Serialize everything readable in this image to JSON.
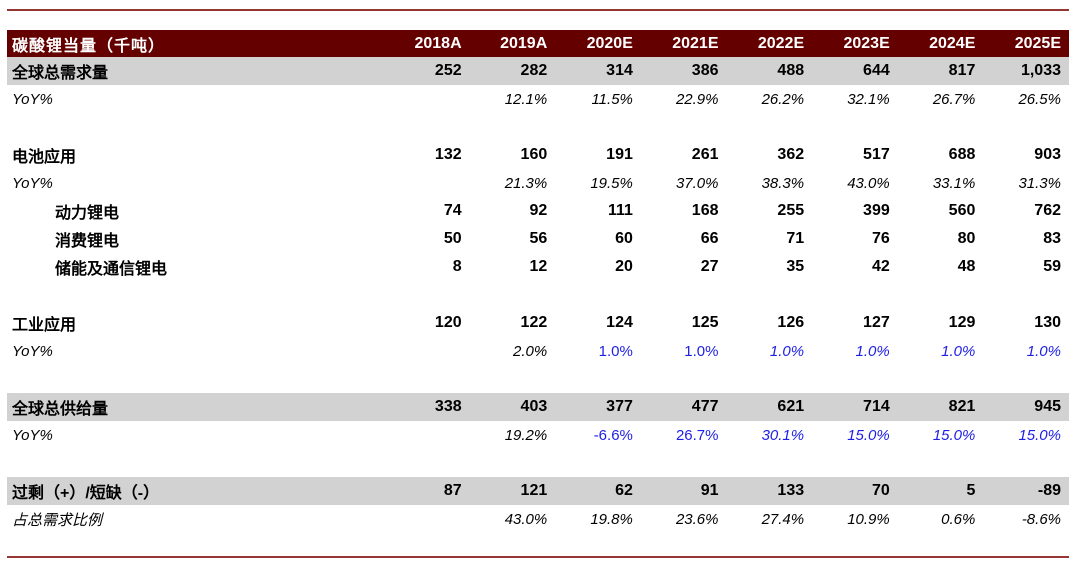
{
  "table": {
    "title_cell": "碳酸锂当量（千吨）",
    "columns": [
      "2018A",
      "2019A",
      "2020E",
      "2021E",
      "2022E",
      "2023E",
      "2024E",
      "2025E"
    ],
    "rows": [
      {
        "label": "全球总需求量",
        "type": "data",
        "highlight": true,
        "values": [
          "252",
          "282",
          "314",
          "386",
          "488",
          "644",
          "817",
          "1,033"
        ]
      },
      {
        "label": "YoY%",
        "type": "yoy",
        "values": [
          "",
          "12.1%",
          "11.5%",
          "22.9%",
          "26.2%",
          "32.1%",
          "26.7%",
          "26.5%"
        ],
        "styles": [
          "",
          "i",
          "i",
          "i",
          "i",
          "i",
          "i",
          "i"
        ]
      },
      {
        "type": "spacer"
      },
      {
        "label": "电池应用",
        "type": "data",
        "values": [
          "132",
          "160",
          "191",
          "261",
          "362",
          "517",
          "688",
          "903"
        ]
      },
      {
        "label": "YoY%",
        "type": "yoy",
        "values": [
          "",
          "21.3%",
          "19.5%",
          "37.0%",
          "38.3%",
          "43.0%",
          "33.1%",
          "31.3%"
        ],
        "styles": [
          "",
          "i",
          "i",
          "i",
          "i",
          "i",
          "i",
          "i"
        ]
      },
      {
        "label": "动力锂电",
        "type": "data",
        "indent": true,
        "values": [
          "74",
          "92",
          "111",
          "168",
          "255",
          "399",
          "560",
          "762"
        ]
      },
      {
        "label": "消费锂电",
        "type": "data",
        "indent": true,
        "values": [
          "50",
          "56",
          "60",
          "66",
          "71",
          "76",
          "80",
          "83"
        ]
      },
      {
        "label": "储能及通信锂电",
        "type": "data",
        "indent": true,
        "values": [
          "8",
          "12",
          "20",
          "27",
          "35",
          "42",
          "48",
          "59"
        ]
      },
      {
        "type": "spacer"
      },
      {
        "label": "工业应用",
        "type": "data",
        "values": [
          "120",
          "122",
          "124",
          "125",
          "126",
          "127",
          "129",
          "130"
        ]
      },
      {
        "label": "YoY%",
        "type": "yoy",
        "values": [
          "",
          "2.0%",
          "1.0%",
          "1.0%",
          "1.0%",
          "1.0%",
          "1.0%",
          "1.0%"
        ],
        "styles": [
          "",
          "i",
          "b",
          "b",
          "bi",
          "bi",
          "bi",
          "bi"
        ]
      },
      {
        "type": "spacer"
      },
      {
        "label": "全球总供给量",
        "type": "data",
        "highlight": true,
        "values": [
          "338",
          "403",
          "377",
          "477",
          "621",
          "714",
          "821",
          "945"
        ]
      },
      {
        "label": "YoY%",
        "type": "yoy",
        "values": [
          "",
          "19.2%",
          "-6.6%",
          "26.7%",
          "30.1%",
          "15.0%",
          "15.0%",
          "15.0%"
        ],
        "styles": [
          "",
          "i",
          "b",
          "b",
          "bi",
          "bi",
          "bi",
          "bi"
        ]
      },
      {
        "type": "spacer"
      },
      {
        "label": "过剩（+）/短缺（-）",
        "type": "data",
        "highlight": true,
        "values": [
          "87",
          "121",
          "62",
          "91",
          "133",
          "70",
          "5",
          "-89"
        ]
      },
      {
        "label": "占总需求比例",
        "type": "yoy",
        "values": [
          "",
          "43.0%",
          "19.8%",
          "23.6%",
          "27.4%",
          "10.9%",
          "0.6%",
          "-8.6%"
        ],
        "styles": [
          "",
          "i",
          "i",
          "i",
          "i",
          "i",
          "i",
          "i"
        ]
      }
    ],
    "colors": {
      "header_bg": "#640000",
      "header_text": "#FFFFFF",
      "row_highlight": "#D2D2D2",
      "accent_blue": "#1E1EE6",
      "rule_line": "#943634",
      "text": "#000000"
    }
  }
}
